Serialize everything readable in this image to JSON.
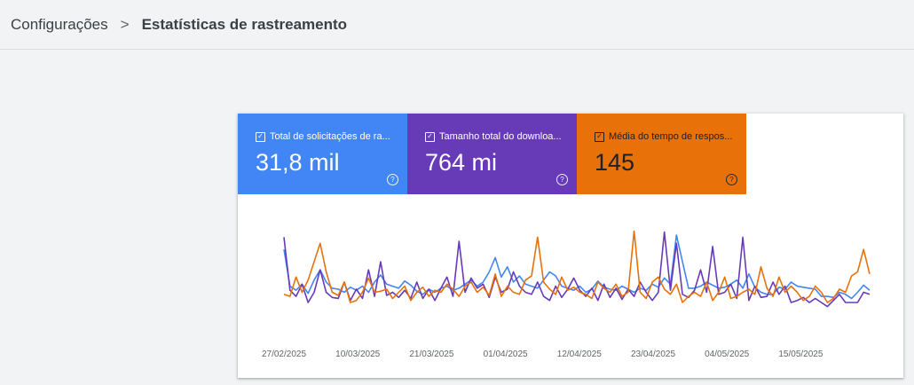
{
  "breadcrumb": {
    "parent": "Configurações",
    "separator": ">",
    "current": "Estatísticas de rastreamento"
  },
  "metrics": [
    {
      "label": "Total de solicitações de ra...",
      "value": "31,8 mil",
      "color": "#4285f4"
    },
    {
      "label": "Tamanho total do downloa...",
      "value": "764 mi",
      "color": "#673ab7"
    },
    {
      "label": "Média do tempo de respos...",
      "value": "145",
      "color": "#e8710a"
    }
  ],
  "icons": {
    "checkbox": "checkbox-checked-icon",
    "help": "help-circle-icon"
  },
  "chart_data": {
    "type": "line",
    "x_tick_labels": [
      "27/02/2025",
      "10/03/2025",
      "21/03/2025",
      "01/04/2025",
      "12/04/2025",
      "23/04/2025",
      "04/05/2025",
      "15/05/2025"
    ],
    "series": [
      {
        "color": "#4285f4",
        "values": [
          0.72,
          0.36,
          0.32,
          0.38,
          0.29,
          0.42,
          0.52,
          0.4,
          0.34,
          0.33,
          0.3,
          0.35,
          0.32,
          0.36,
          0.3,
          0.4,
          0.47,
          0.38,
          0.36,
          0.34,
          0.41,
          0.37,
          0.31,
          0.28,
          0.33,
          0.3,
          0.34,
          0.36,
          0.32,
          0.34,
          0.38,
          0.42,
          0.36,
          0.4,
          0.5,
          0.64,
          0.45,
          0.55,
          0.4,
          0.46,
          0.38,
          0.36,
          0.34,
          0.42,
          0.5,
          0.46,
          0.36,
          0.34,
          0.32,
          0.36,
          0.3,
          0.33,
          0.41,
          0.35,
          0.33,
          0.32,
          0.36,
          0.33,
          0.3,
          0.34,
          0.32,
          0.38,
          0.35,
          0.44,
          0.38,
          0.86,
          0.6,
          0.34,
          0.34,
          0.36,
          0.4,
          0.37,
          0.34,
          0.35,
          0.38,
          0.42,
          0.34,
          0.48,
          0.35,
          0.3,
          0.28,
          0.28,
          0.35,
          0.33,
          0.4,
          0.36,
          0.35,
          0.34,
          0.33,
          0.26,
          0.26,
          0.25,
          0.3,
          0.28,
          0.24,
          0.3,
          0.37,
          0.32
        ]
      },
      {
        "color": "#673ab7",
        "values": [
          0.84,
          0.32,
          0.26,
          0.38,
          0.2,
          0.3,
          0.52,
          0.3,
          0.25,
          0.24,
          0.4,
          0.22,
          0.33,
          0.24,
          0.52,
          0.26,
          0.6,
          0.27,
          0.3,
          0.25,
          0.32,
          0.24,
          0.4,
          0.24,
          0.33,
          0.22,
          0.34,
          0.45,
          0.26,
          0.8,
          0.3,
          0.44,
          0.34,
          0.38,
          0.25,
          0.45,
          0.3,
          0.33,
          0.5,
          0.36,
          0.3,
          0.28,
          0.4,
          0.26,
          0.22,
          0.36,
          0.25,
          0.33,
          0.44,
          0.32,
          0.26,
          0.34,
          0.22,
          0.38,
          0.25,
          0.34,
          0.23,
          0.33,
          0.26,
          0.4,
          0.3,
          0.22,
          0.3,
          0.89,
          0.32,
          0.78,
          0.28,
          0.25,
          0.32,
          0.52,
          0.3,
          0.75,
          0.28,
          0.3,
          0.38,
          0.24,
          0.84,
          0.22,
          0.36,
          0.25,
          0.26,
          0.4,
          0.28,
          0.36,
          0.2,
          0.22,
          0.25,
          0.2,
          0.24,
          0.2,
          0.16,
          0.22,
          0.28,
          0.2,
          0.2,
          0.2,
          0.3,
          0.28
        ]
      },
      {
        "color": "#e8710a",
        "values": [
          0.28,
          0.26,
          0.45,
          0.3,
          0.42,
          0.6,
          0.78,
          0.5,
          0.3,
          0.27,
          0.4,
          0.2,
          0.22,
          0.3,
          0.44,
          0.3,
          0.31,
          0.33,
          0.24,
          0.3,
          0.36,
          0.22,
          0.3,
          0.35,
          0.26,
          0.32,
          0.3,
          0.38,
          0.33,
          0.26,
          0.36,
          0.4,
          0.3,
          0.35,
          0.27,
          0.48,
          0.26,
          0.36,
          0.3,
          0.28,
          0.42,
          0.46,
          0.84,
          0.4,
          0.33,
          0.28,
          0.45,
          0.32,
          0.35,
          0.3,
          0.28,
          0.24,
          0.4,
          0.34,
          0.3,
          0.38,
          0.26,
          0.3,
          0.9,
          0.3,
          0.24,
          0.4,
          0.45,
          0.33,
          0.28,
          0.38,
          0.2,
          0.26,
          0.3,
          0.26,
          0.4,
          0.22,
          0.3,
          0.45,
          0.24,
          0.26,
          0.3,
          0.33,
          0.28,
          0.55,
          0.34,
          0.26,
          0.45,
          0.3,
          0.36,
          0.3,
          0.22,
          0.26,
          0.36,
          0.3,
          0.2,
          0.24,
          0.33,
          0.3,
          0.46,
          0.5,
          0.72,
          0.48
        ]
      }
    ]
  }
}
